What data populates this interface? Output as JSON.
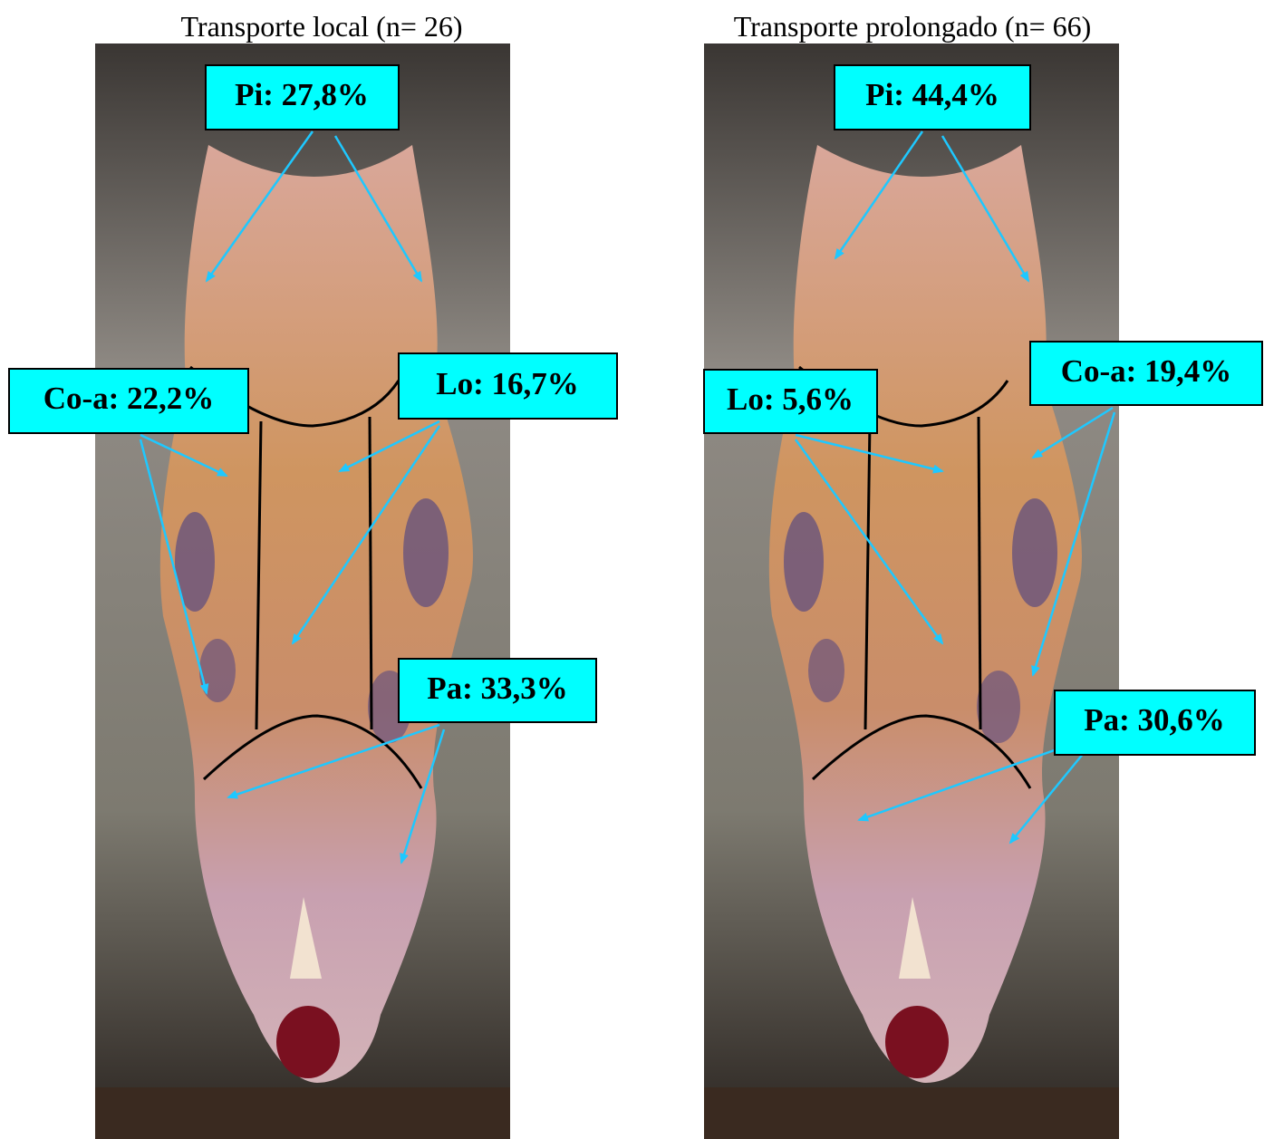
{
  "panels": [
    {
      "title": "Transporte local (n= 26)",
      "labels": {
        "pi": "Pi: 27,8%",
        "coa": "Co-a: 22,2%",
        "lo": "Lo: 16,7%",
        "pa": "Pa: 33,3%"
      }
    },
    {
      "title": "Transporte prolongado (n= 66)",
      "labels": {
        "pi": "Pi: 44,4%",
        "lo": "Lo: 5,6%",
        "coa": "Co-a: 19,4%",
        "pa": "Pa: 30,6%"
      }
    }
  ]
}
